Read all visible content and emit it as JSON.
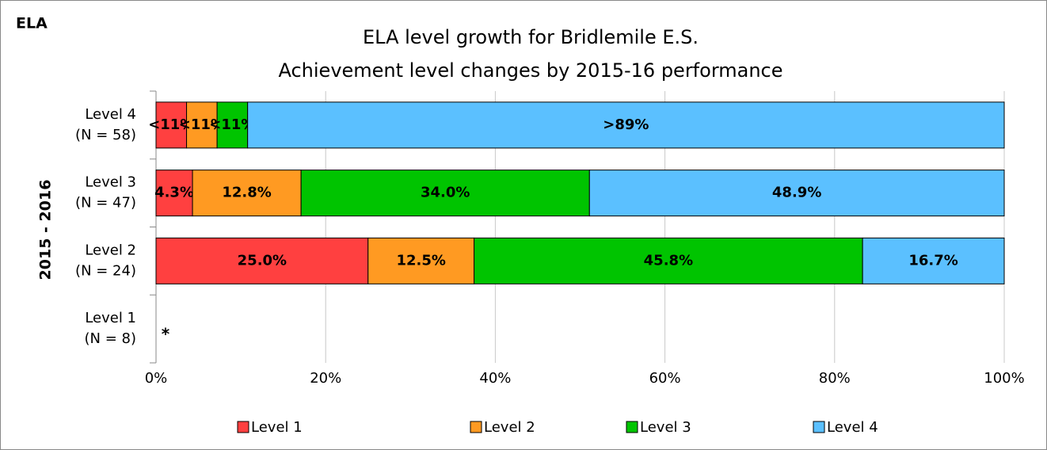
{
  "chart_data": {
    "type": "stacked-bar-horizontal",
    "corner_label": "ELA",
    "title": [
      "ELA level growth for Bridlemile E.S.",
      "Achievement level changes by 2015-16 performance"
    ],
    "ylabel": "2015 - 2016",
    "categories": [
      [
        "Level 4",
        "(N = 58)"
      ],
      [
        "Level 3",
        "(N = 47)"
      ],
      [
        "Level 2",
        "(N = 24)"
      ],
      [
        "Level 1",
        "(N = 8)"
      ]
    ],
    "series": [
      {
        "name": "Level 1",
        "color": "#ff4040",
        "values": [
          3.6,
          4.3,
          25.0,
          null
        ],
        "value_labels": [
          "<11%",
          "4.3%",
          "25.0%",
          null
        ]
      },
      {
        "name": "Level 2",
        "color": "#ff9a22",
        "values": [
          3.6,
          12.8,
          12.5,
          null
        ],
        "value_labels": [
          "<11%",
          "12.8%",
          "12.5%",
          null
        ]
      },
      {
        "name": "Level 3",
        "color": "#00c400",
        "values": [
          3.6,
          34.0,
          45.8,
          null
        ],
        "value_labels": [
          "<11%",
          "34.0%",
          "45.8%",
          null
        ]
      },
      {
        "name": "Level 4",
        "color": "#5bc0ff",
        "values": [
          89.2,
          48.9,
          16.7,
          null
        ],
        "value_labels": [
          ">89%",
          "48.9%",
          "16.7%",
          null
        ]
      }
    ],
    "annotation": "*",
    "xlim": [
      0,
      100
    ],
    "xticks": [
      {
        "value": 0,
        "label": "0%"
      },
      {
        "value": 20,
        "label": "20%"
      },
      {
        "value": 40,
        "label": "40%"
      },
      {
        "value": 60,
        "label": "60%"
      },
      {
        "value": 80,
        "label": "80%"
      },
      {
        "value": 100,
        "label": "100%"
      }
    ],
    "grid": true
  }
}
